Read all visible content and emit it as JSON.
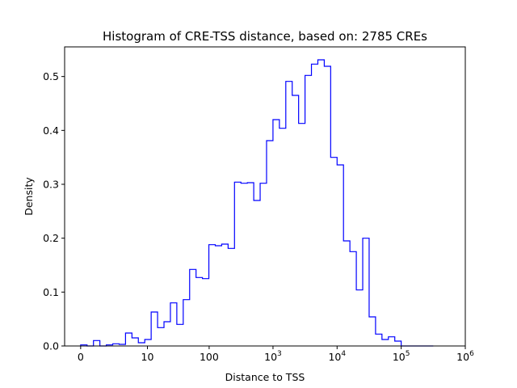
{
  "chart_data": {
    "type": "histogram",
    "title": "Histogram of CRE-TSS distance, based on: 2785 CREs",
    "xlabel": "Distance to TSS",
    "ylabel": "Density",
    "x_scale": "symlog",
    "xlim": [
      0,
      1000000
    ],
    "ylim": [
      0,
      0.555
    ],
    "x_ticks": [
      {
        "value": 0,
        "label": "0",
        "sup": ""
      },
      {
        "value": 10,
        "label": "10",
        "sup": ""
      },
      {
        "value": 100,
        "label": "100",
        "sup": ""
      },
      {
        "value": 1000,
        "label": "10",
        "sup": "3"
      },
      {
        "value": 10000,
        "label": "10",
        "sup": "4"
      },
      {
        "value": 100000,
        "label": "10",
        "sup": "5"
      },
      {
        "value": 1000000,
        "label": "10",
        "sup": "6"
      }
    ],
    "y_ticks": [
      {
        "value": 0.0,
        "label": "0.0"
      },
      {
        "value": 0.1,
        "label": "0.1"
      },
      {
        "value": 0.2,
        "label": "0.2"
      },
      {
        "value": 0.3,
        "label": "0.3"
      },
      {
        "value": 0.4,
        "label": "0.4"
      },
      {
        "value": 0.5,
        "label": "0.5"
      }
    ],
    "grid": false,
    "color": "#0000ff",
    "bin_edges_symlog": [
      0,
      0.1,
      0.2,
      0.3,
      0.4,
      0.5,
      0.6,
      0.7,
      0.8,
      0.9,
      1.0,
      1.1,
      1.2,
      1.3,
      1.4,
      1.5,
      1.6,
      1.7,
      1.8,
      1.9,
      2.0,
      2.1,
      2.2,
      2.3,
      2.4,
      2.5,
      2.6,
      2.7,
      2.8,
      2.9,
      3.0,
      3.1,
      3.2,
      3.3,
      3.4,
      3.5,
      3.6,
      3.7,
      3.8,
      3.9,
      4.0,
      4.1,
      4.2,
      4.3,
      4.4,
      4.5,
      4.6,
      4.7,
      4.8,
      4.9,
      5.0,
      5.1,
      5.2,
      5.3,
      5.4,
      5.5
    ],
    "densities": [
      0.002,
      0.0,
      0.01,
      0.0,
      0.002,
      0.004,
      0.003,
      0.024,
      0.015,
      0.006,
      0.012,
      0.063,
      0.034,
      0.045,
      0.08,
      0.04,
      0.086,
      0.142,
      0.127,
      0.125,
      0.188,
      0.186,
      0.189,
      0.181,
      0.304,
      0.302,
      0.303,
      0.27,
      0.302,
      0.381,
      0.42,
      0.404,
      0.491,
      0.465,
      0.413,
      0.502,
      0.523,
      0.531,
      0.519,
      0.35,
      0.336,
      0.195,
      0.175,
      0.104,
      0.2,
      0.054,
      0.022,
      0.012,
      0.017,
      0.009,
      0.0,
      0.0,
      0.0,
      0.0,
      0.0
    ]
  }
}
